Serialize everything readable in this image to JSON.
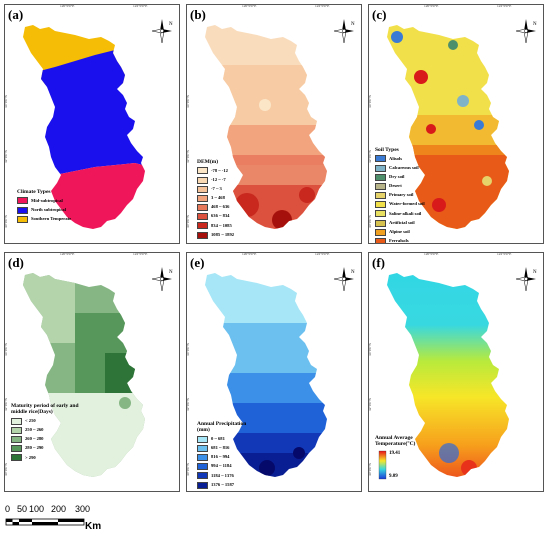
{
  "panels": {
    "a": {
      "label": "(a)",
      "legend_title": "Climate Types",
      "legend": [
        {
          "label": "Mid-subtropical",
          "color": "#f0165a"
        },
        {
          "label": "North subtropical",
          "color": "#1a10ee"
        },
        {
          "label": "Southern Temperate",
          "color": "#f5bd05"
        }
      ]
    },
    "b": {
      "label": "(b)",
      "legend_title": "DEM(m)",
      "legend": [
        {
          "label": "-78 ~ -12",
          "color": "#fbe6c8"
        },
        {
          "label": "-12 ~ -7",
          "color": "#f9d8b4"
        },
        {
          "label": "-7 ~ 3",
          "color": "#f6c49a"
        },
        {
          "label": "3 ~ 468",
          "color": "#f2a47e"
        },
        {
          "label": "468 ~ 636",
          "color": "#e8785a"
        },
        {
          "label": "636 ~ 834",
          "color": "#dc513e"
        },
        {
          "label": "834 ~ 1085",
          "color": "#c8281e"
        },
        {
          "label": "1085 ~ 1892",
          "color": "#a6100c"
        }
      ]
    },
    "c": {
      "label": "(c)",
      "legend_title": "Soil Types",
      "legend": [
        {
          "label": "Alisols",
          "color": "#3a7bd5"
        },
        {
          "label": "Calcareous soil",
          "color": "#7fb3c8"
        },
        {
          "label": "Dry soil",
          "color": "#4e8f6b"
        },
        {
          "label": "Desert",
          "color": "#b8b48a"
        },
        {
          "label": "Primary soil",
          "color": "#e6d36a"
        },
        {
          "label": "Water-formed soil",
          "color": "#f2e04a"
        },
        {
          "label": "Saline-alkali soil",
          "color": "#e8e060"
        },
        {
          "label": "Artificial soil",
          "color": "#d6c24e"
        },
        {
          "label": "Alpine soil",
          "color": "#f0a020"
        },
        {
          "label": "Ferralsols",
          "color": "#e85a18"
        },
        {
          "label": "Others",
          "color": "#d81a1a"
        }
      ]
    },
    "d": {
      "label": "(d)",
      "legend_title": "Maturity period of early and middle rice(Days)",
      "legend": [
        {
          "label": "< 250",
          "color": "#e2f0de"
        },
        {
          "label": "250 ~ 260",
          "color": "#b4d4ac"
        },
        {
          "label": "260 ~ 280",
          "color": "#86b684"
        },
        {
          "label": "280 ~ 290",
          "color": "#57975c"
        },
        {
          "label": "> 290",
          "color": "#2e7439"
        }
      ]
    },
    "e": {
      "label": "(e)",
      "legend_title": "Annual Precipitation (mm)",
      "legend": [
        {
          "label": "0 ~ 681",
          "color": "#a6e6f6"
        },
        {
          "label": "681 ~ 816",
          "color": "#6cc0f0"
        },
        {
          "label": "816 ~ 994",
          "color": "#3c90e8"
        },
        {
          "label": "994 ~ 1184",
          "color": "#1f62d8"
        },
        {
          "label": "1184 ~ 1376",
          "color": "#1238b8"
        },
        {
          "label": "1376 ~ 1587",
          "color": "#0a1e94"
        },
        {
          "label": "1587 ~ 2157",
          "color": "#050a6a"
        }
      ]
    },
    "f": {
      "label": "(f)",
      "legend_title": "Annual Average Temperature(°C)",
      "legend_max": "19.41",
      "legend_min": "9.09"
    }
  },
  "ticks": {
    "top": [
      "120°0'0\"E",
      "122°0'0\"E"
    ],
    "left": [
      "34°0'0\"N",
      "32°0'0\"N",
      "30°0'0\"N"
    ]
  },
  "compass_label": "N",
  "scale": {
    "labels": [
      "0",
      "50",
      "100",
      "200",
      "300"
    ],
    "unit": "Km"
  }
}
